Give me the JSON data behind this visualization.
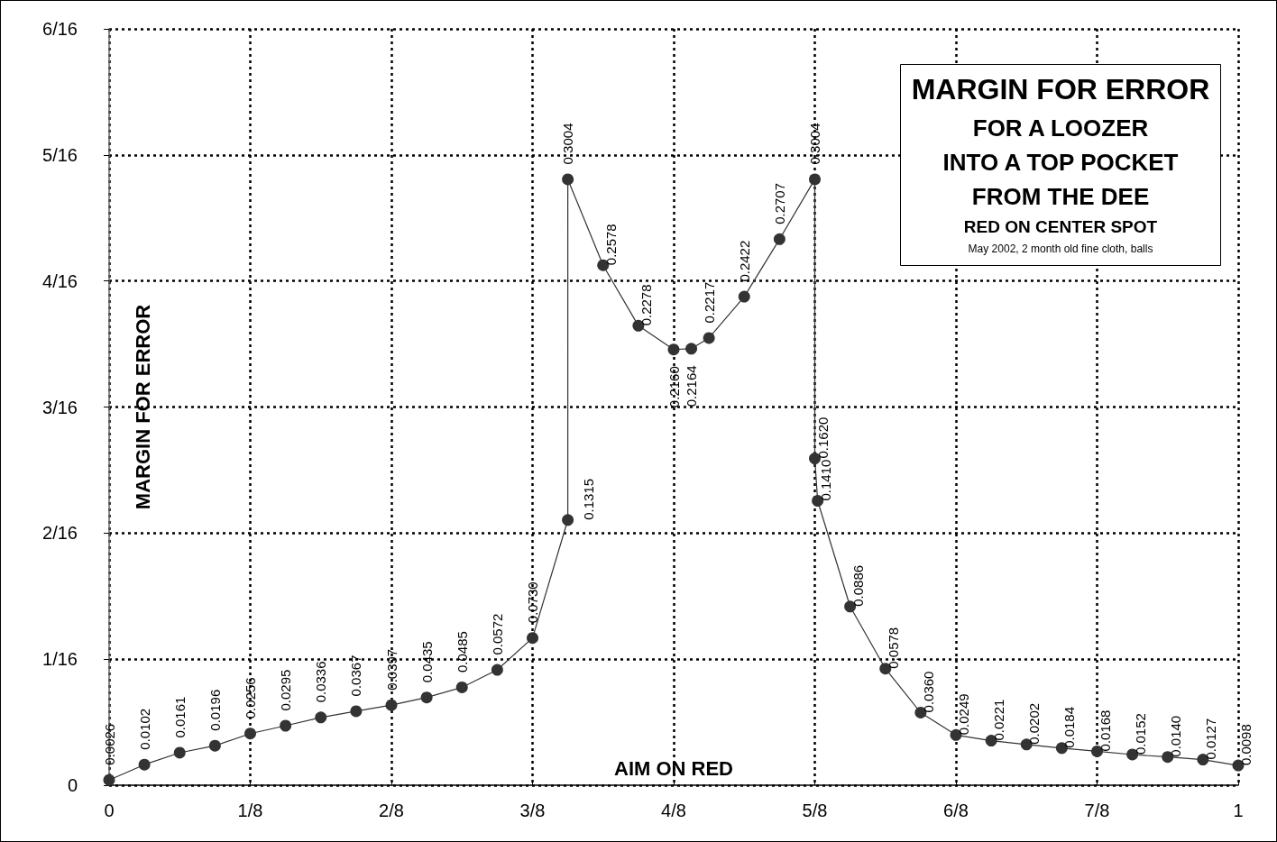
{
  "chart_data": {
    "type": "line",
    "title": "MARGIN FOR ERROR",
    "subtitle": "FOR A LOOZER\nINTO A TOP POCKET\nFROM THE DEE",
    "annotations": [
      "RED ON CENTER SPOT",
      "May 2002, 2 month old fine cloth, balls"
    ],
    "xlabel": "AIM ON RED",
    "ylabel": "MARGIN FOR ERROR",
    "x": [
      0,
      0.03125,
      0.0625,
      0.09375,
      0.125,
      0.15625,
      0.1875,
      0.21875,
      0.25,
      0.28125,
      0.3125,
      0.34375,
      0.375,
      0.40625,
      0.40625,
      0.4375,
      0.46875,
      0.5,
      0.515625,
      0.53125,
      0.5625,
      0.59375,
      0.625,
      0.625,
      0.6275,
      0.65625,
      0.6875,
      0.71875,
      0.75,
      0.78125,
      0.8125,
      0.84375,
      0.875,
      0.90625,
      0.9375,
      0.96875,
      1
    ],
    "series": [
      {
        "color": "#333333",
        "values": [
          0.0026,
          0.0102,
          0.0161,
          0.0196,
          0.0256,
          0.0295,
          0.0336,
          0.0367,
          0.0397,
          0.0435,
          0.0485,
          0.0572,
          0.073,
          0.1315,
          0.3004,
          0.2578,
          0.2278,
          0.216,
          0.2164,
          0.2217,
          0.2422,
          0.2707,
          0.3004,
          0.162,
          0.141,
          0.0886,
          0.0578,
          0.036,
          0.0249,
          0.0221,
          0.0202,
          0.0184,
          0.0168,
          0.0152,
          0.014,
          0.0127,
          0.0098
        ],
        "value_labels": [
          "0.0026",
          "0.0102",
          "0.0161",
          "0.0196",
          "0.0256",
          "0.0295",
          "0.0336",
          "0.0367",
          "0.0397",
          "0.0435",
          "0.0485",
          "0.0572",
          "0.0730",
          "0.1315",
          "0.3004",
          "0.2578",
          "0.2278",
          "0.2160",
          "0.2164",
          "0.2217",
          "0.2422",
          "0.2707",
          "0.3004",
          "0.1620",
          "0.1410",
          "0.0886",
          "0.0578",
          "0.0360",
          "0.0249",
          "0.0221",
          "0.0202",
          "0.0184",
          "0.0168",
          "0.0152",
          "0.0140",
          "0.0127",
          "0.0098"
        ]
      }
    ],
    "xlim": [
      0,
      1
    ],
    "xticks": [
      0,
      {
        "value": 0.125,
        "label": "1/8"
      },
      {
        "value": 0.25,
        "label": "2/8"
      },
      {
        "value": 0.375,
        "label": "3/8"
      },
      {
        "value": 0.5,
        "label": "4/8"
      },
      {
        "value": 0.625,
        "label": "5/8"
      },
      {
        "value": 0.75,
        "label": "6/8"
      },
      {
        "value": 0.875,
        "label": "7/8"
      },
      1
    ],
    "ylim": [
      0,
      0.375
    ],
    "yticks": [
      0,
      {
        "value": 0.0625,
        "label": "1/16"
      },
      {
        "value": 0.125,
        "label": "2/16"
      },
      {
        "value": 0.1875,
        "label": "3/16"
      },
      {
        "value": 0.25,
        "label": "4/16"
      },
      {
        "value": 0.3125,
        "label": "5/16"
      },
      {
        "value": 0.375,
        "label": "6/16"
      }
    ],
    "grid": true,
    "marker": "circle",
    "line_style": "solid"
  }
}
